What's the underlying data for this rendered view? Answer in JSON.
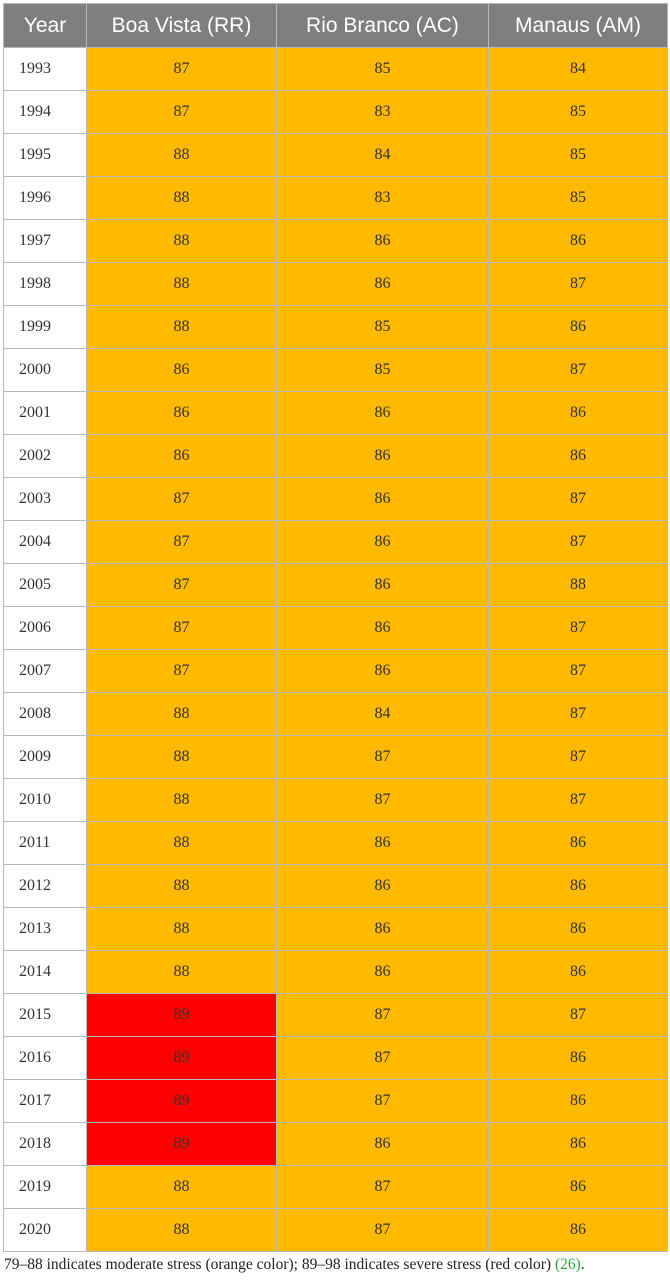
{
  "table": {
    "headers": [
      "Year",
      "Boa Vista (RR)",
      "Rio Branco (AC)",
      "Manaus (AM)"
    ],
    "rows": [
      {
        "year": "1993",
        "values": [
          "87",
          "85",
          "84"
        ]
      },
      {
        "year": "1994",
        "values": [
          "87",
          "83",
          "85"
        ]
      },
      {
        "year": "1995",
        "values": [
          "88",
          "84",
          "85"
        ]
      },
      {
        "year": "1996",
        "values": [
          "88",
          "83",
          "85"
        ]
      },
      {
        "year": "1997",
        "values": [
          "88",
          "86",
          "86"
        ]
      },
      {
        "year": "1998",
        "values": [
          "88",
          "86",
          "87"
        ]
      },
      {
        "year": "1999",
        "values": [
          "88",
          "85",
          "86"
        ]
      },
      {
        "year": "2000",
        "values": [
          "86",
          "85",
          "87"
        ]
      },
      {
        "year": "2001",
        "values": [
          "86",
          "86",
          "86"
        ]
      },
      {
        "year": "2002",
        "values": [
          "86",
          "86",
          "86"
        ]
      },
      {
        "year": "2003",
        "values": [
          "87",
          "86",
          "87"
        ]
      },
      {
        "year": "2004",
        "values": [
          "87",
          "86",
          "87"
        ]
      },
      {
        "year": "2005",
        "values": [
          "87",
          "86",
          "88"
        ]
      },
      {
        "year": "2006",
        "values": [
          "87",
          "86",
          "87"
        ]
      },
      {
        "year": "2007",
        "values": [
          "87",
          "86",
          "87"
        ]
      },
      {
        "year": "2008",
        "values": [
          "88",
          "84",
          "87"
        ]
      },
      {
        "year": "2009",
        "values": [
          "88",
          "87",
          "87"
        ]
      },
      {
        "year": "2010",
        "values": [
          "88",
          "87",
          "87"
        ]
      },
      {
        "year": "2011",
        "values": [
          "88",
          "86",
          "86"
        ]
      },
      {
        "year": "2012",
        "values": [
          "88",
          "86",
          "86"
        ]
      },
      {
        "year": "2013",
        "values": [
          "88",
          "86",
          "86"
        ]
      },
      {
        "year": "2014",
        "values": [
          "88",
          "86",
          "86"
        ]
      },
      {
        "year": "2015",
        "values": [
          "89",
          "87",
          "87"
        ]
      },
      {
        "year": "2016",
        "values": [
          "89",
          "87",
          "86"
        ]
      },
      {
        "year": "2017",
        "values": [
          "89",
          "87",
          "86"
        ]
      },
      {
        "year": "2018",
        "values": [
          "89",
          "86",
          "86"
        ]
      },
      {
        "year": "2019",
        "values": [
          "88",
          "87",
          "86"
        ]
      },
      {
        "year": "2020",
        "values": [
          "88",
          "87",
          "86"
        ]
      }
    ]
  },
  "colors": {
    "moderate": "#ffba00",
    "severe": "#ff0000",
    "header_bg": "#7f7f7f"
  },
  "footnote": {
    "text": "79–88 indicates moderate stress (orange color); 89–98 indicates severe stress (red color) ",
    "ref": "(26)",
    "end": "."
  }
}
